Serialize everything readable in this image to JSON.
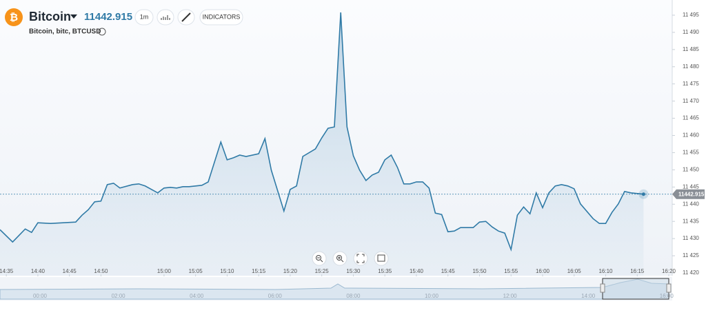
{
  "chart_data": {
    "type": "area",
    "title": "Bitcoin",
    "subtitle": "Bitcoin, bitc, BTCUSD",
    "toolbar": {
      "interval": "1m",
      "indicators": "INDICATORS"
    },
    "series": [
      {
        "name": "BTCUSD",
        "color": "#2f7aa6",
        "x": [
          874,
          876,
          878,
          879,
          880,
          882,
          884,
          886,
          887,
          888,
          889,
          890,
          891,
          892,
          893,
          895,
          896,
          897,
          899,
          900,
          901,
          902,
          903,
          904,
          906,
          907,
          909,
          910,
          911,
          912,
          913,
          915,
          916,
          917,
          919,
          920,
          921,
          922,
          924,
          925,
          926,
          927,
          928,
          929,
          930,
          931,
          932,
          933,
          934,
          935,
          936,
          937,
          938,
          939,
          940,
          941,
          942,
          943,
          944,
          945,
          946,
          947,
          949,
          950,
          951,
          952,
          953,
          954,
          955,
          956,
          957,
          958,
          959,
          960,
          961,
          962,
          963,
          964,
          965,
          966,
          968,
          969,
          970,
          971,
          972,
          973,
          974,
          976
        ],
        "values": [
          11432.6,
          11429.0,
          11432.8,
          11431.8,
          11434.6,
          11434.4,
          11434.6,
          11434.8,
          11436.8,
          11438.4,
          11440.7,
          11440.9,
          11445.7,
          11446.1,
          11444.7,
          11445.7,
          11445.9,
          11445.3,
          11443.3,
          11444.7,
          11444.9,
          11444.7,
          11445.1,
          11445.1,
          11445.5,
          11446.5,
          11458.1,
          11452.9,
          11453.5,
          11454.3,
          11453.9,
          11454.7,
          11459.1,
          11449.9,
          11438.0,
          11444.3,
          11445.3,
          11453.9,
          11456.1,
          11459.3,
          11462.1,
          11462.5,
          11495.8,
          11462.5,
          11454.1,
          11449.9,
          11446.9,
          11448.5,
          11449.3,
          11452.9,
          11454.3,
          11450.7,
          11445.9,
          11445.9,
          11446.5,
          11446.5,
          11444.7,
          11437.4,
          11437.0,
          11432.0,
          11432.2,
          11433.2,
          11433.2,
          11434.8,
          11435.0,
          11433.4,
          11432.2,
          11431.6,
          11426.8,
          11436.8,
          11439.2,
          11437.2,
          11443.3,
          11439.0,
          11443.3,
          11445.3,
          11445.7,
          11445.3,
          11444.5,
          11440.1,
          11435.8,
          11434.4,
          11434.4,
          11437.6,
          11440.1,
          11443.7,
          11443.3,
          11442.915
        ]
      }
    ],
    "xlim": [
      874,
      980
    ],
    "xticks": [
      {
        "value": 875,
        "label": "14:35"
      },
      {
        "value": 880,
        "label": "14:40"
      },
      {
        "value": 885,
        "label": "14:45"
      },
      {
        "value": 890,
        "label": "14:50"
      },
      {
        "value": 900,
        "label": "15:00"
      },
      {
        "value": 905,
        "label": "15:05"
      },
      {
        "value": 910,
        "label": "15:10"
      },
      {
        "value": 915,
        "label": "15:15"
      },
      {
        "value": 920,
        "label": "15:20"
      },
      {
        "value": 925,
        "label": "15:25"
      },
      {
        "value": 930,
        "label": "15:30"
      },
      {
        "value": 935,
        "label": "15:35"
      },
      {
        "value": 940,
        "label": "15:40"
      },
      {
        "value": 945,
        "label": "15:45"
      },
      {
        "value": 950,
        "label": "15:50"
      },
      {
        "value": 955,
        "label": "15:55"
      },
      {
        "value": 960,
        "label": "16:00"
      },
      {
        "value": 965,
        "label": "16:05"
      },
      {
        "value": 970,
        "label": "16:10"
      },
      {
        "value": 975,
        "label": "16:15"
      },
      {
        "value": 980,
        "label": "16:20"
      }
    ],
    "ylim": [
      11420,
      11495
    ],
    "yticks": [
      {
        "value": 11420,
        "label": "11 420"
      },
      {
        "value": 11425,
        "label": "11 425"
      },
      {
        "value": 11430,
        "label": "11 430"
      },
      {
        "value": 11435,
        "label": "11 435"
      },
      {
        "value": 11440,
        "label": "11 440"
      },
      {
        "value": 11445,
        "label": "11 445"
      },
      {
        "value": 11450,
        "label": "11 450"
      },
      {
        "value": 11455,
        "label": "11 455"
      },
      {
        "value": 11460,
        "label": "11 460"
      },
      {
        "value": 11465,
        "label": "11 465"
      },
      {
        "value": 11470,
        "label": "11 470"
      },
      {
        "value": 11475,
        "label": "11 475"
      },
      {
        "value": 11480,
        "label": "11 480"
      },
      {
        "value": 11485,
        "label": "11 485"
      },
      {
        "value": 11490,
        "label": "11 490"
      },
      {
        "value": 11495,
        "label": "11 495"
      }
    ],
    "navigator": {
      "labels": [
        "00:00",
        "02:00",
        "04:00",
        "06:00",
        "08:00",
        "10:00",
        "12:00",
        "14:00",
        "16:00"
      ]
    }
  }
}
